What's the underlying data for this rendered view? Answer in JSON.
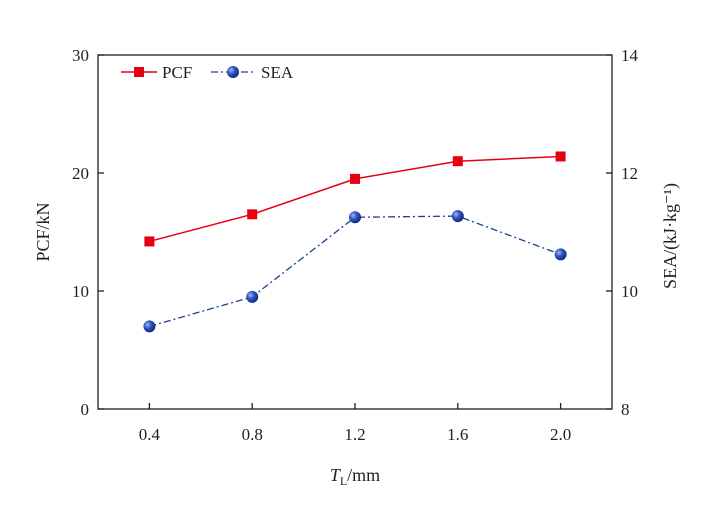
{
  "chart_data": {
    "type": "line",
    "x": [
      0.4,
      0.8,
      1.2,
      1.6,
      2.0
    ],
    "x_ticks": [
      "0.4",
      "0.8",
      "1.2",
      "1.6",
      "2.0"
    ],
    "xlim": [
      0.2,
      2.2
    ],
    "xlabel": {
      "main": "T",
      "sub": "L",
      "rest": "/mm"
    },
    "y_left": {
      "label": "PCF/kN",
      "lim": [
        0,
        30
      ],
      "ticks": [
        "0",
        "10",
        "20",
        "30"
      ]
    },
    "y_right": {
      "label": "SEA/(kJ·kg⁻¹)",
      "lim": [
        8,
        14
      ],
      "ticks": [
        "8",
        "10",
        "12",
        "14"
      ]
    },
    "grid": false,
    "legend_position": "top-left",
    "series": [
      {
        "name": "PCF",
        "axis": "left",
        "values": [
          14.2,
          16.5,
          19.5,
          21.0,
          21.4
        ],
        "color": "#e60012",
        "marker": "square",
        "line": "solid"
      },
      {
        "name": "SEA",
        "axis": "right",
        "values": [
          9.4,
          9.9,
          11.25,
          11.27,
          10.62
        ],
        "color": "#1d3f9a",
        "marker": "sphere",
        "line": "dash-dot"
      }
    ]
  }
}
